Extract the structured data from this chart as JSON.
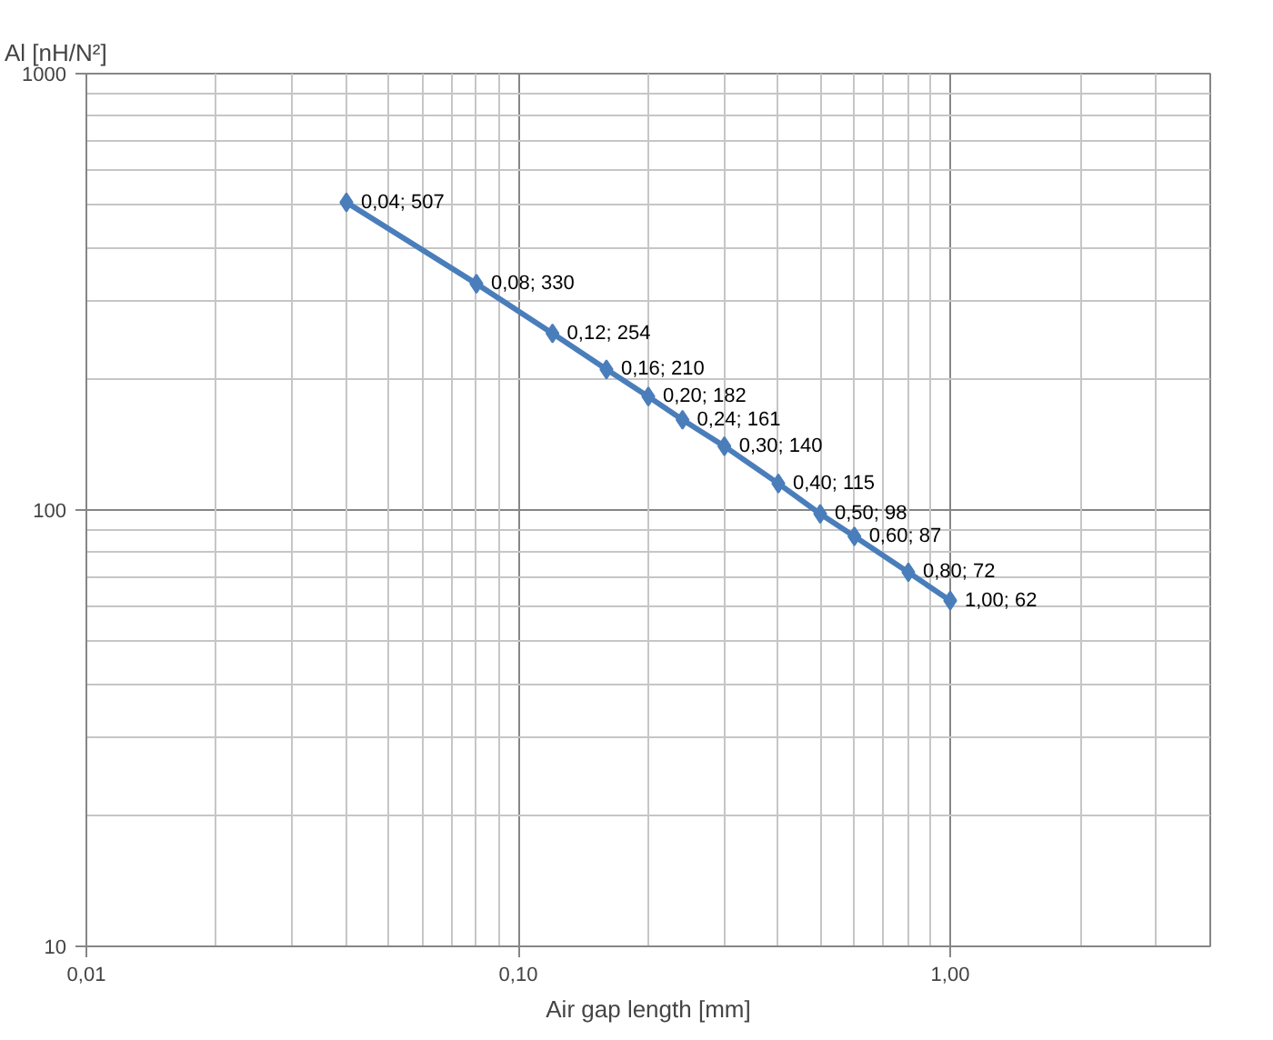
{
  "chart_data": {
    "type": "line",
    "xlabel": "Air gap length [mm]",
    "ylabel": "Al [nH/N²]",
    "x": [
      0.04,
      0.08,
      0.12,
      0.16,
      0.2,
      0.24,
      0.3,
      0.4,
      0.5,
      0.6,
      0.8,
      1.0
    ],
    "series": [
      {
        "color": "#4a7ebb",
        "values": [
          507,
          330,
          254,
          210,
          182,
          161,
          140,
          115,
          98,
          87,
          72,
          62
        ],
        "value_labels": [
          "0,04; 507",
          "0,08; 330",
          "0,12; 254",
          "0,16; 210",
          "0,20; 182",
          "0,24; 161",
          "0,30; 140",
          "0,40; 115",
          "0,50; 98",
          "0,60; 87",
          "0,80; 72",
          "1,00; 62"
        ]
      }
    ],
    "log": "xy",
    "xlim": [
      0.01,
      4
    ],
    "ylim": [
      10,
      1000
    ],
    "xticks": [
      {
        "value": 0.01,
        "label": "0,01"
      },
      {
        "value": 0.1,
        "label": "0,10"
      },
      {
        "value": 1,
        "label": "1,00"
      }
    ],
    "yticks": [
      10,
      100,
      1000
    ],
    "grid": true,
    "marker": "diamond",
    "line_style": "solid"
  }
}
